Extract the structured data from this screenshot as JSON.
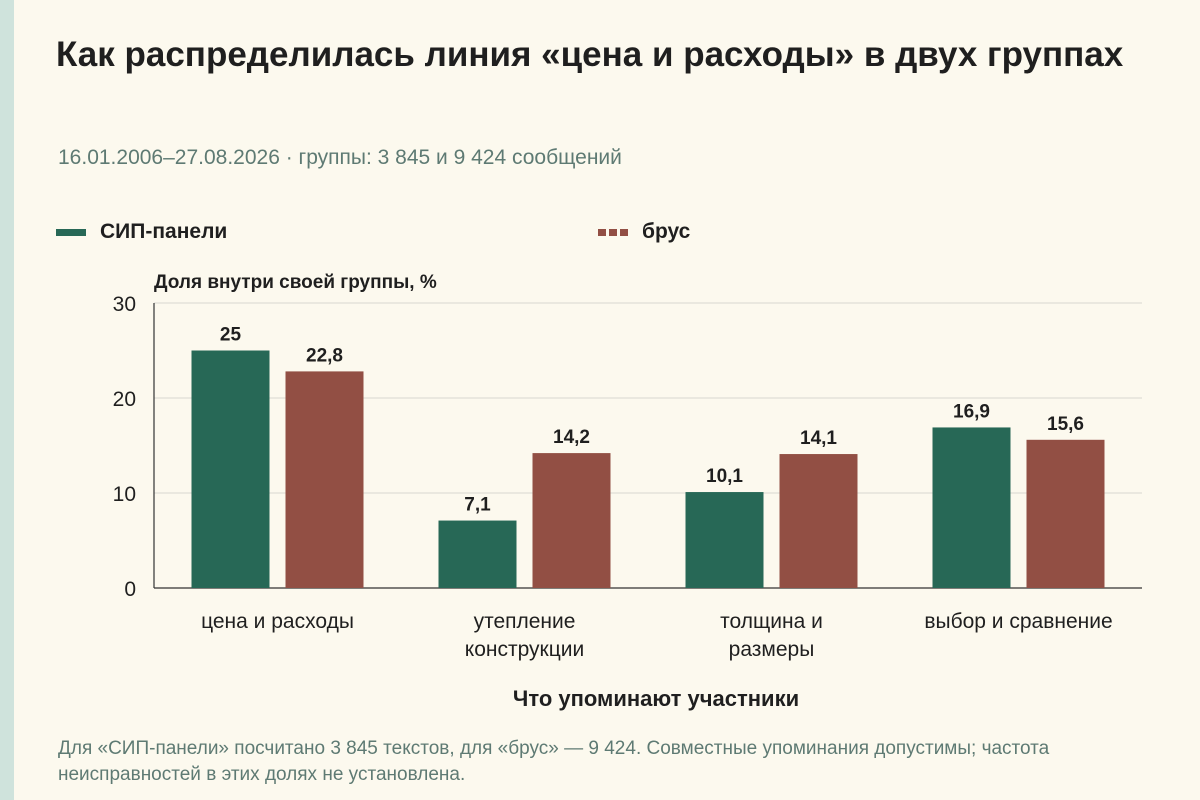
{
  "colors": {
    "sip": "#276856",
    "brus": "#924f44",
    "background": "#fcf9ee",
    "accent_strip": "#cfe3dc",
    "muted_text": "#5e7a73",
    "grid": "#d8d8d0"
  },
  "header": {
    "title": "Как распределилась линия «цена и расходы» в двух группах",
    "subtitle": "16.01.2006–27.08.2026 · группы: 3 845 и 9 424 сообщений"
  },
  "legend": {
    "sip_label": "СИП-панели",
    "brus_label": "брус"
  },
  "chart_data": {
    "type": "bar",
    "ylabel": "Доля внутри своей группы, %",
    "xlabel": "Что упоминают участники",
    "ylim": [
      0,
      30
    ],
    "yticks": [
      "0",
      "10",
      "20",
      "30"
    ],
    "grid": true,
    "legend_position": "top-left",
    "categories": [
      [
        "цена и расходы"
      ],
      [
        "утепление",
        "конструкции"
      ],
      [
        "толщина и",
        "размеры"
      ],
      [
        "выбор и сравнение"
      ]
    ],
    "series": [
      {
        "name": "СИП-панели",
        "values": [
          25,
          7.1,
          10.1,
          16.9
        ],
        "labels": [
          "25",
          "7,1",
          "10,1",
          "16,9"
        ]
      },
      {
        "name": "брус",
        "values": [
          22.8,
          14.2,
          14.1,
          15.6
        ],
        "labels": [
          "22,8",
          "14,2",
          "14,1",
          "15,6"
        ]
      }
    ]
  },
  "footnote": "Для «СИП-панели» посчитано 3 845 текстов, для «брус» — 9 424. Совместные упоминания допустимы; частота неисправностей в этих долях не установлена."
}
